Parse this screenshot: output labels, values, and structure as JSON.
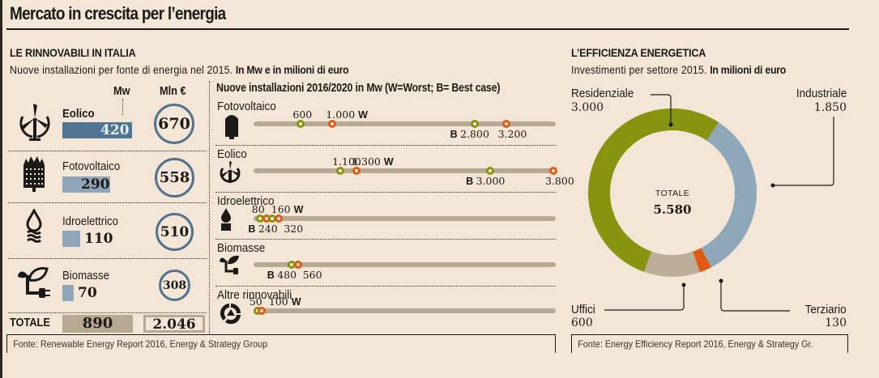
{
  "header": {
    "title": "Mercato in crescita per l’energia"
  },
  "renewables": {
    "section_title": "LE RINNOVABILI IN ITALIA",
    "subtitle_plain": "Nuove installazioni per fonte di energia nel 2015.",
    "subtitle_bold": "In Mw e in milioni di euro",
    "col_mw": "Mw",
    "col_eur": "Mln €",
    "total_label": "TOTALE",
    "total_mw": "890",
    "total_eur": "2.046",
    "source": "Fonte: Renewable Energy Report 2016, Energy & Strategy Group",
    "rows": [
      {
        "name": "Eolico",
        "icon": "wind-turbine-icon",
        "mw": "420",
        "eur": "670"
      },
      {
        "name": "Fotovoltaico",
        "icon": "solar-panel-icon",
        "mw": "290",
        "eur": "558"
      },
      {
        "name": "Idroelettrico",
        "icon": "water-drop-icon",
        "mw": "110",
        "eur": "510"
      },
      {
        "name": "Biomasse",
        "icon": "plant-plug-icon",
        "mw": "70",
        "eur": "308"
      }
    ]
  },
  "projections": {
    "title": "Nuove installazioni 2016/2020 in Mw (W=Worst; B= Best case)",
    "worst_marker": "W",
    "best_marker": "B",
    "rows": [
      {
        "name": "Fotovoltaico",
        "icon": "solar-panel-icon",
        "w_low": "600",
        "w_high": "1.000",
        "b_low": "2.800",
        "b_high": "3.200"
      },
      {
        "name": "Eolico",
        "icon": "wind-turbine-icon",
        "w_low": "1.100",
        "w_high": "1.300",
        "b_low": "3.000",
        "b_high": "3.800"
      },
      {
        "name": "Idroelettrico",
        "icon": "water-drop-icon",
        "w_low": "80",
        "w_high": "160",
        "b_low": "240",
        "b_high": "320"
      },
      {
        "name": "Biomasse",
        "icon": "plant-plug-icon",
        "w_low": "",
        "w_high": "",
        "b_low": "480",
        "b_high": "560"
      },
      {
        "name": "Altre rinnovabili",
        "icon": "recycle-icon",
        "w_low": "50",
        "w_high": "100",
        "b_low": "",
        "b_high": ""
      }
    ]
  },
  "efficiency": {
    "section_title": "L’EFFICIENZA ENERGETICA",
    "subtitle_plain": "Investimenti per settore 2015.",
    "subtitle_bold": "In milioni di euro",
    "total_label": "TOTALE",
    "total_value": "5.580",
    "source": "Fonte: Energy Efficiency Report 2016, Energy & Strategy Gr.",
    "labels": {
      "residenziale": {
        "name": "Residenziale",
        "value": "3.000"
      },
      "industriale": {
        "name": "Industriale",
        "value": "1.850"
      },
      "uffici": {
        "name": "Uffici",
        "value": "600"
      },
      "terziario": {
        "name": "Terziario",
        "value": "130"
      }
    }
  },
  "colors": {
    "background": "#f4e6d6",
    "mw_bar_dark": "#4f7596",
    "mw_bar_light": "#8fa6b8",
    "ring": "#52718c",
    "track": "#b8a994",
    "green": "#86940f",
    "orange": "#e05a14",
    "blue": "#8ea8ba",
    "beige": "#bcae98"
  },
  "chart_data": [
    {
      "type": "bar",
      "title": "Nuove installazioni per fonte di energia nel 2015",
      "categories": [
        "Eolico",
        "Fotovoltaico",
        "Idroelettrico",
        "Biomasse"
      ],
      "series": [
        {
          "name": "Mw",
          "values": [
            420,
            290,
            110,
            70
          ]
        },
        {
          "name": "Mln €",
          "values": [
            670,
            558,
            510,
            308
          ]
        }
      ],
      "totals": {
        "Mw": 890,
        "Mln €": 2046
      }
    },
    {
      "type": "scatter",
      "title": "Nuove installazioni 2016/2020 in Mw (W=Worst; B= Best case)",
      "categories": [
        "Fotovoltaico",
        "Eolico",
        "Idroelettrico",
        "Biomasse",
        "Altre rinnovabili"
      ],
      "series": [
        {
          "name": "Worst low (green)",
          "values": [
            600,
            1100,
            80,
            null,
            50
          ]
        },
        {
          "name": "Worst high (orange)",
          "values": [
            1000,
            1300,
            160,
            null,
            100
          ]
        },
        {
          "name": "Best low (green)",
          "values": [
            2800,
            3000,
            240,
            480,
            null
          ]
        },
        {
          "name": "Best high (orange)",
          "values": [
            3200,
            3800,
            320,
            560,
            null
          ]
        }
      ],
      "xlim": [
        0,
        3800
      ]
    },
    {
      "type": "pie",
      "title": "Investimenti per settore 2015. In milioni di euro",
      "categories": [
        "Residenziale",
        "Industriale",
        "Terziario",
        "Uffici"
      ],
      "values": [
        3000,
        1850,
        130,
        600
      ],
      "total": 5580,
      "colors": [
        "#86940f",
        "#8ea8ba",
        "#e05a14",
        "#bcae98"
      ]
    }
  ]
}
